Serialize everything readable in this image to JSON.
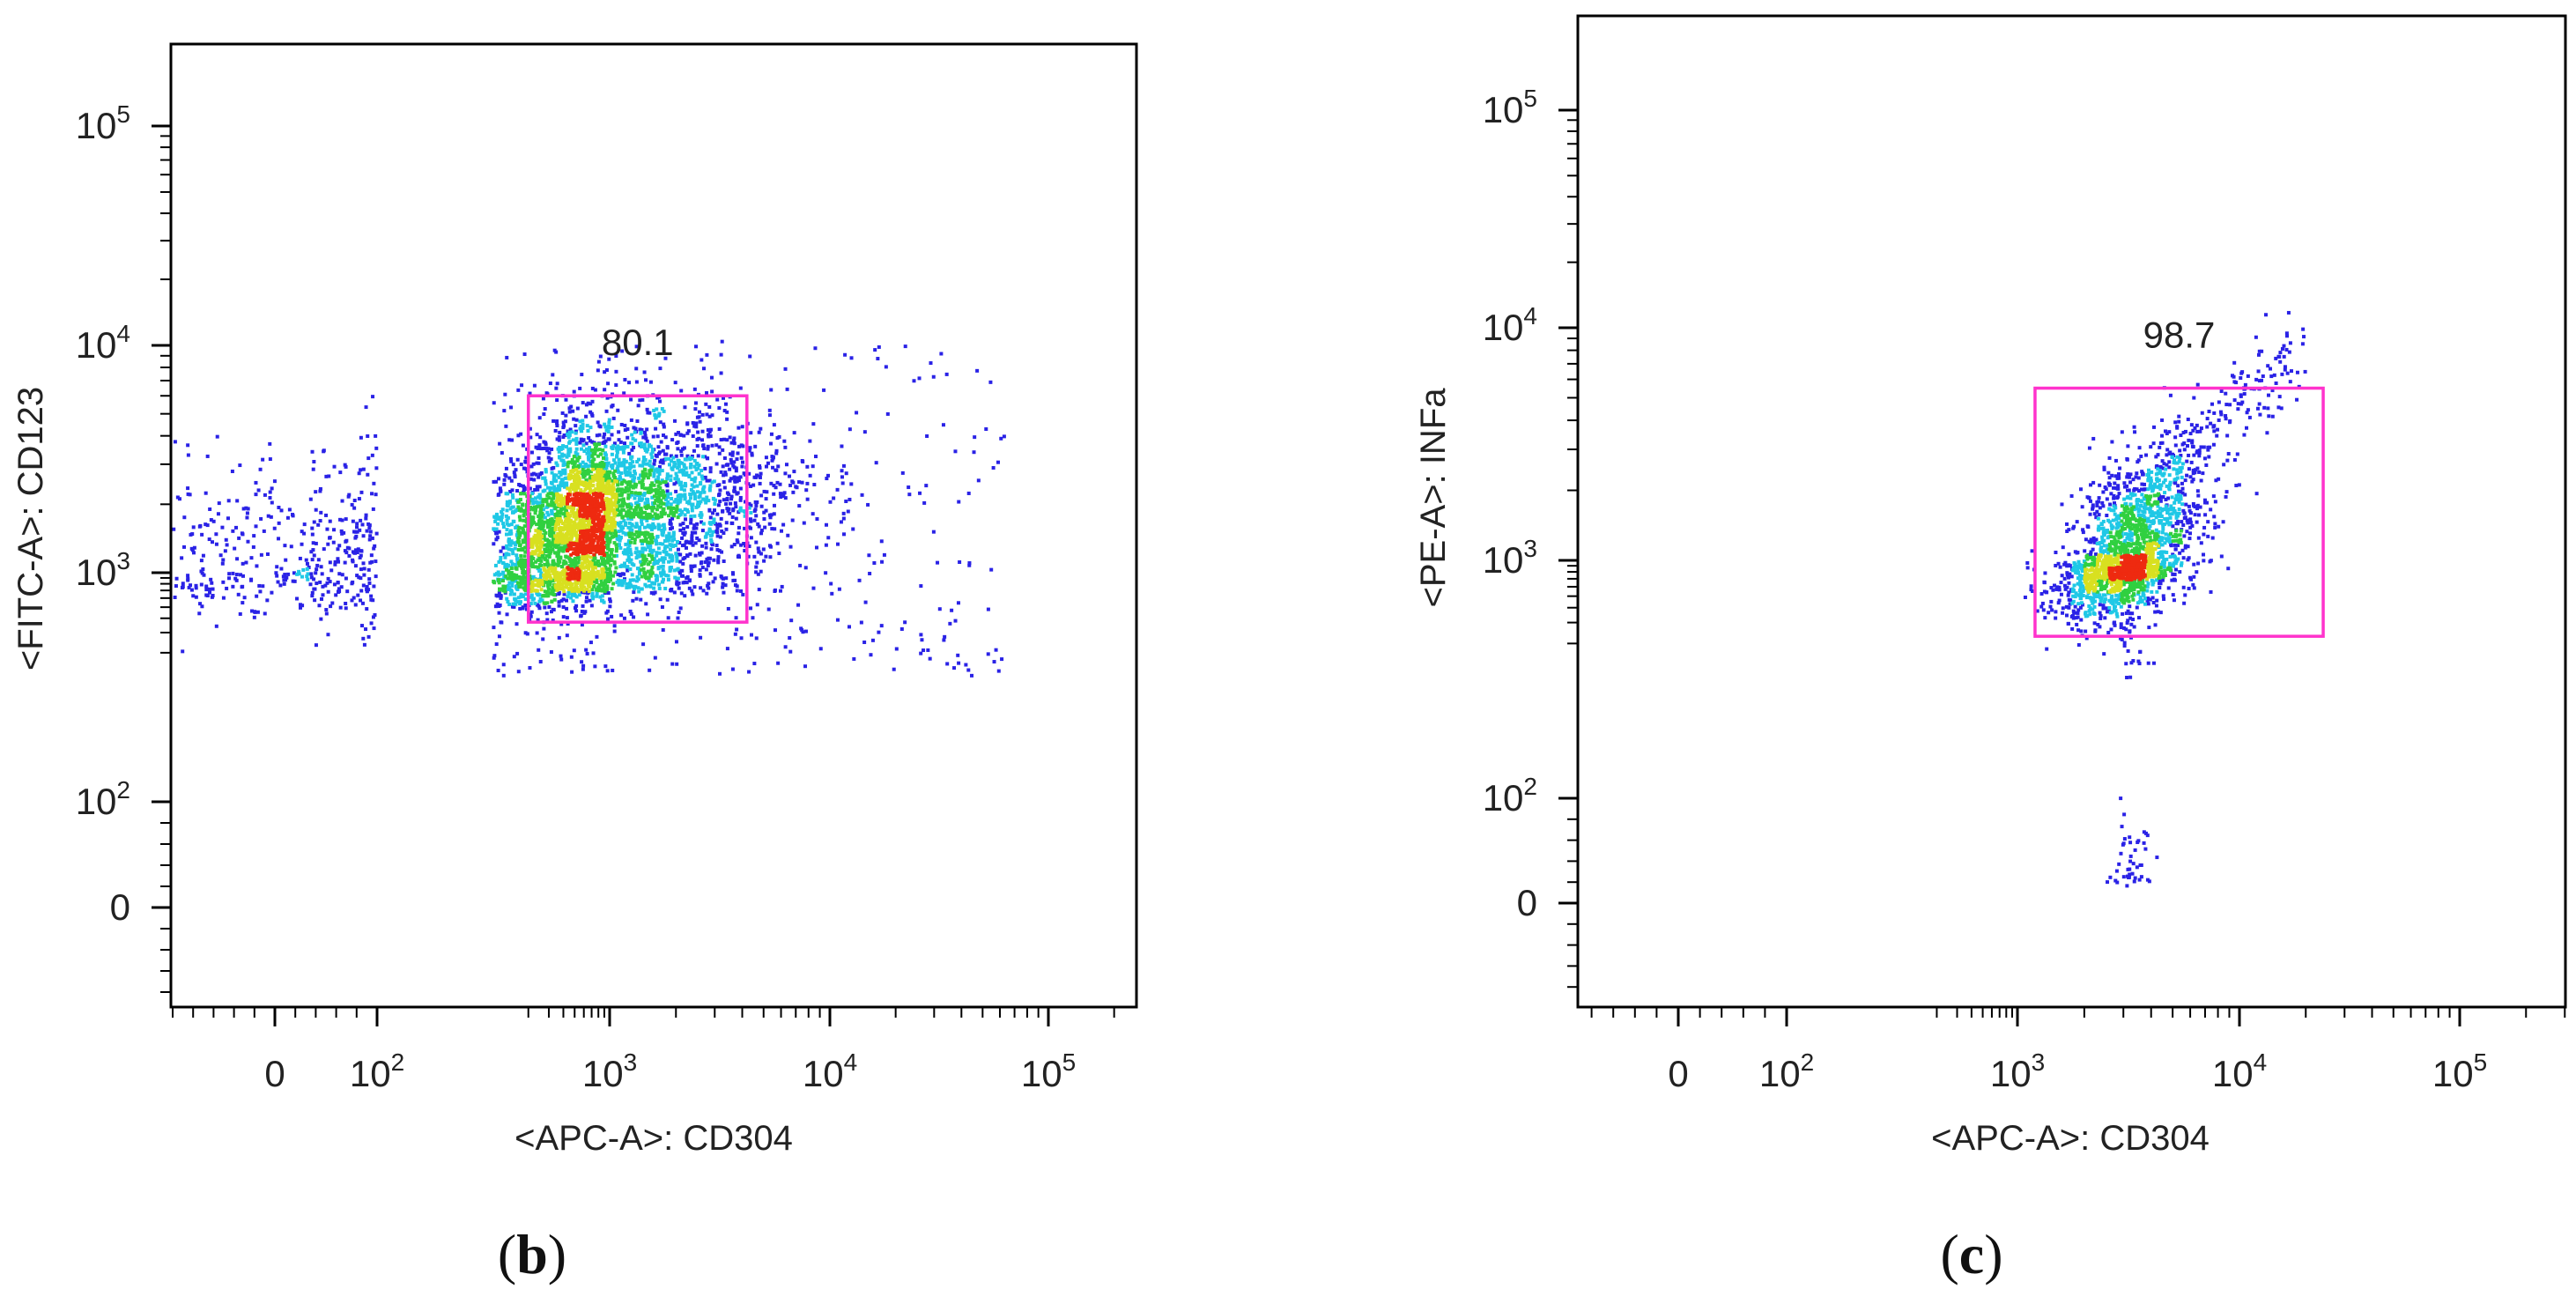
{
  "figure": {
    "panels": [
      {
        "label_open": "(",
        "label_letter": "b",
        "label_close": ")"
      },
      {
        "label_open": "(",
        "label_letter": "c",
        "label_close": ")"
      }
    ]
  },
  "chart_data": [
    {
      "type": "scatter",
      "panel": "b",
      "title": "",
      "xlabel": "<APC-A>: CD304",
      "ylabel": "<FITC-A>: CD123",
      "x_scale": "biexponential",
      "y_scale": "biexponential",
      "xlim": [
        -220,
        250000
      ],
      "ylim": [
        -150,
        250000
      ],
      "x_ticks": [
        {
          "value": 0,
          "base": "0",
          "exp": ""
        },
        {
          "value": 100,
          "base": "10",
          "exp": "2"
        },
        {
          "value": 1000,
          "base": "10",
          "exp": "3"
        },
        {
          "value": 10000,
          "base": "10",
          "exp": "4"
        },
        {
          "value": 100000,
          "base": "10",
          "exp": "5"
        }
      ],
      "y_ticks": [
        {
          "value": 0,
          "base": "0",
          "exp": ""
        },
        {
          "value": 100,
          "base": "10",
          "exp": "2"
        },
        {
          "value": 1000,
          "base": "10",
          "exp": "3"
        },
        {
          "value": 10000,
          "base": "10",
          "exp": "4"
        },
        {
          "value": 100000,
          "base": "10",
          "exp": "5"
        }
      ],
      "gate": {
        "label": "80.1",
        "x": [
          200,
          4200
        ],
        "y": [
          370,
          6000
        ],
        "color": "#ff33cc"
      },
      "population": {
        "main_center": [
          800,
          1700
        ],
        "spread_log": [
          0.42,
          0.22
        ],
        "tail_center": [
          20,
          1100
        ],
        "point_count": 5200
      },
      "colormap": [
        "#2a22e6",
        "#1fc8e6",
        "#30d040",
        "#d8e020",
        "#ee2a10"
      ]
    },
    {
      "type": "scatter",
      "panel": "c",
      "title": "",
      "xlabel": "<APC-A>: CD304",
      "ylabel": "<PE-A>: INFa",
      "x_scale": "biexponential",
      "y_scale": "biexponential",
      "xlim": [
        -220,
        250000
      ],
      "ylim": [
        -150,
        250000
      ],
      "x_ticks": [
        {
          "value": 0,
          "base": "0",
          "exp": ""
        },
        {
          "value": 100,
          "base": "10",
          "exp": "2"
        },
        {
          "value": 1000,
          "base": "10",
          "exp": "3"
        },
        {
          "value": 10000,
          "base": "10",
          "exp": "4"
        },
        {
          "value": 100000,
          "base": "10",
          "exp": "5"
        }
      ],
      "y_ticks": [
        {
          "value": 0,
          "base": "0",
          "exp": ""
        },
        {
          "value": 100,
          "base": "10",
          "exp": "2"
        },
        {
          "value": 1000,
          "base": "10",
          "exp": "3"
        },
        {
          "value": 10000,
          "base": "10",
          "exp": "4"
        },
        {
          "value": 100000,
          "base": "10",
          "exp": "5"
        }
      ],
      "gate": {
        "label": "98.7",
        "x": [
          1200,
          24000
        ],
        "y": [
          230,
          5500
        ],
        "color": "#ff33cc"
      },
      "population": {
        "main_center": [
          3200,
          1000
        ],
        "spread_log": [
          0.16,
          0.2
        ],
        "diagonal_range": [
          3000,
          18000
        ],
        "point_count": 2100
      },
      "colormap": [
        "#2a22e6",
        "#1fc8e6",
        "#30d040",
        "#d8e020",
        "#ee2a10"
      ]
    }
  ]
}
